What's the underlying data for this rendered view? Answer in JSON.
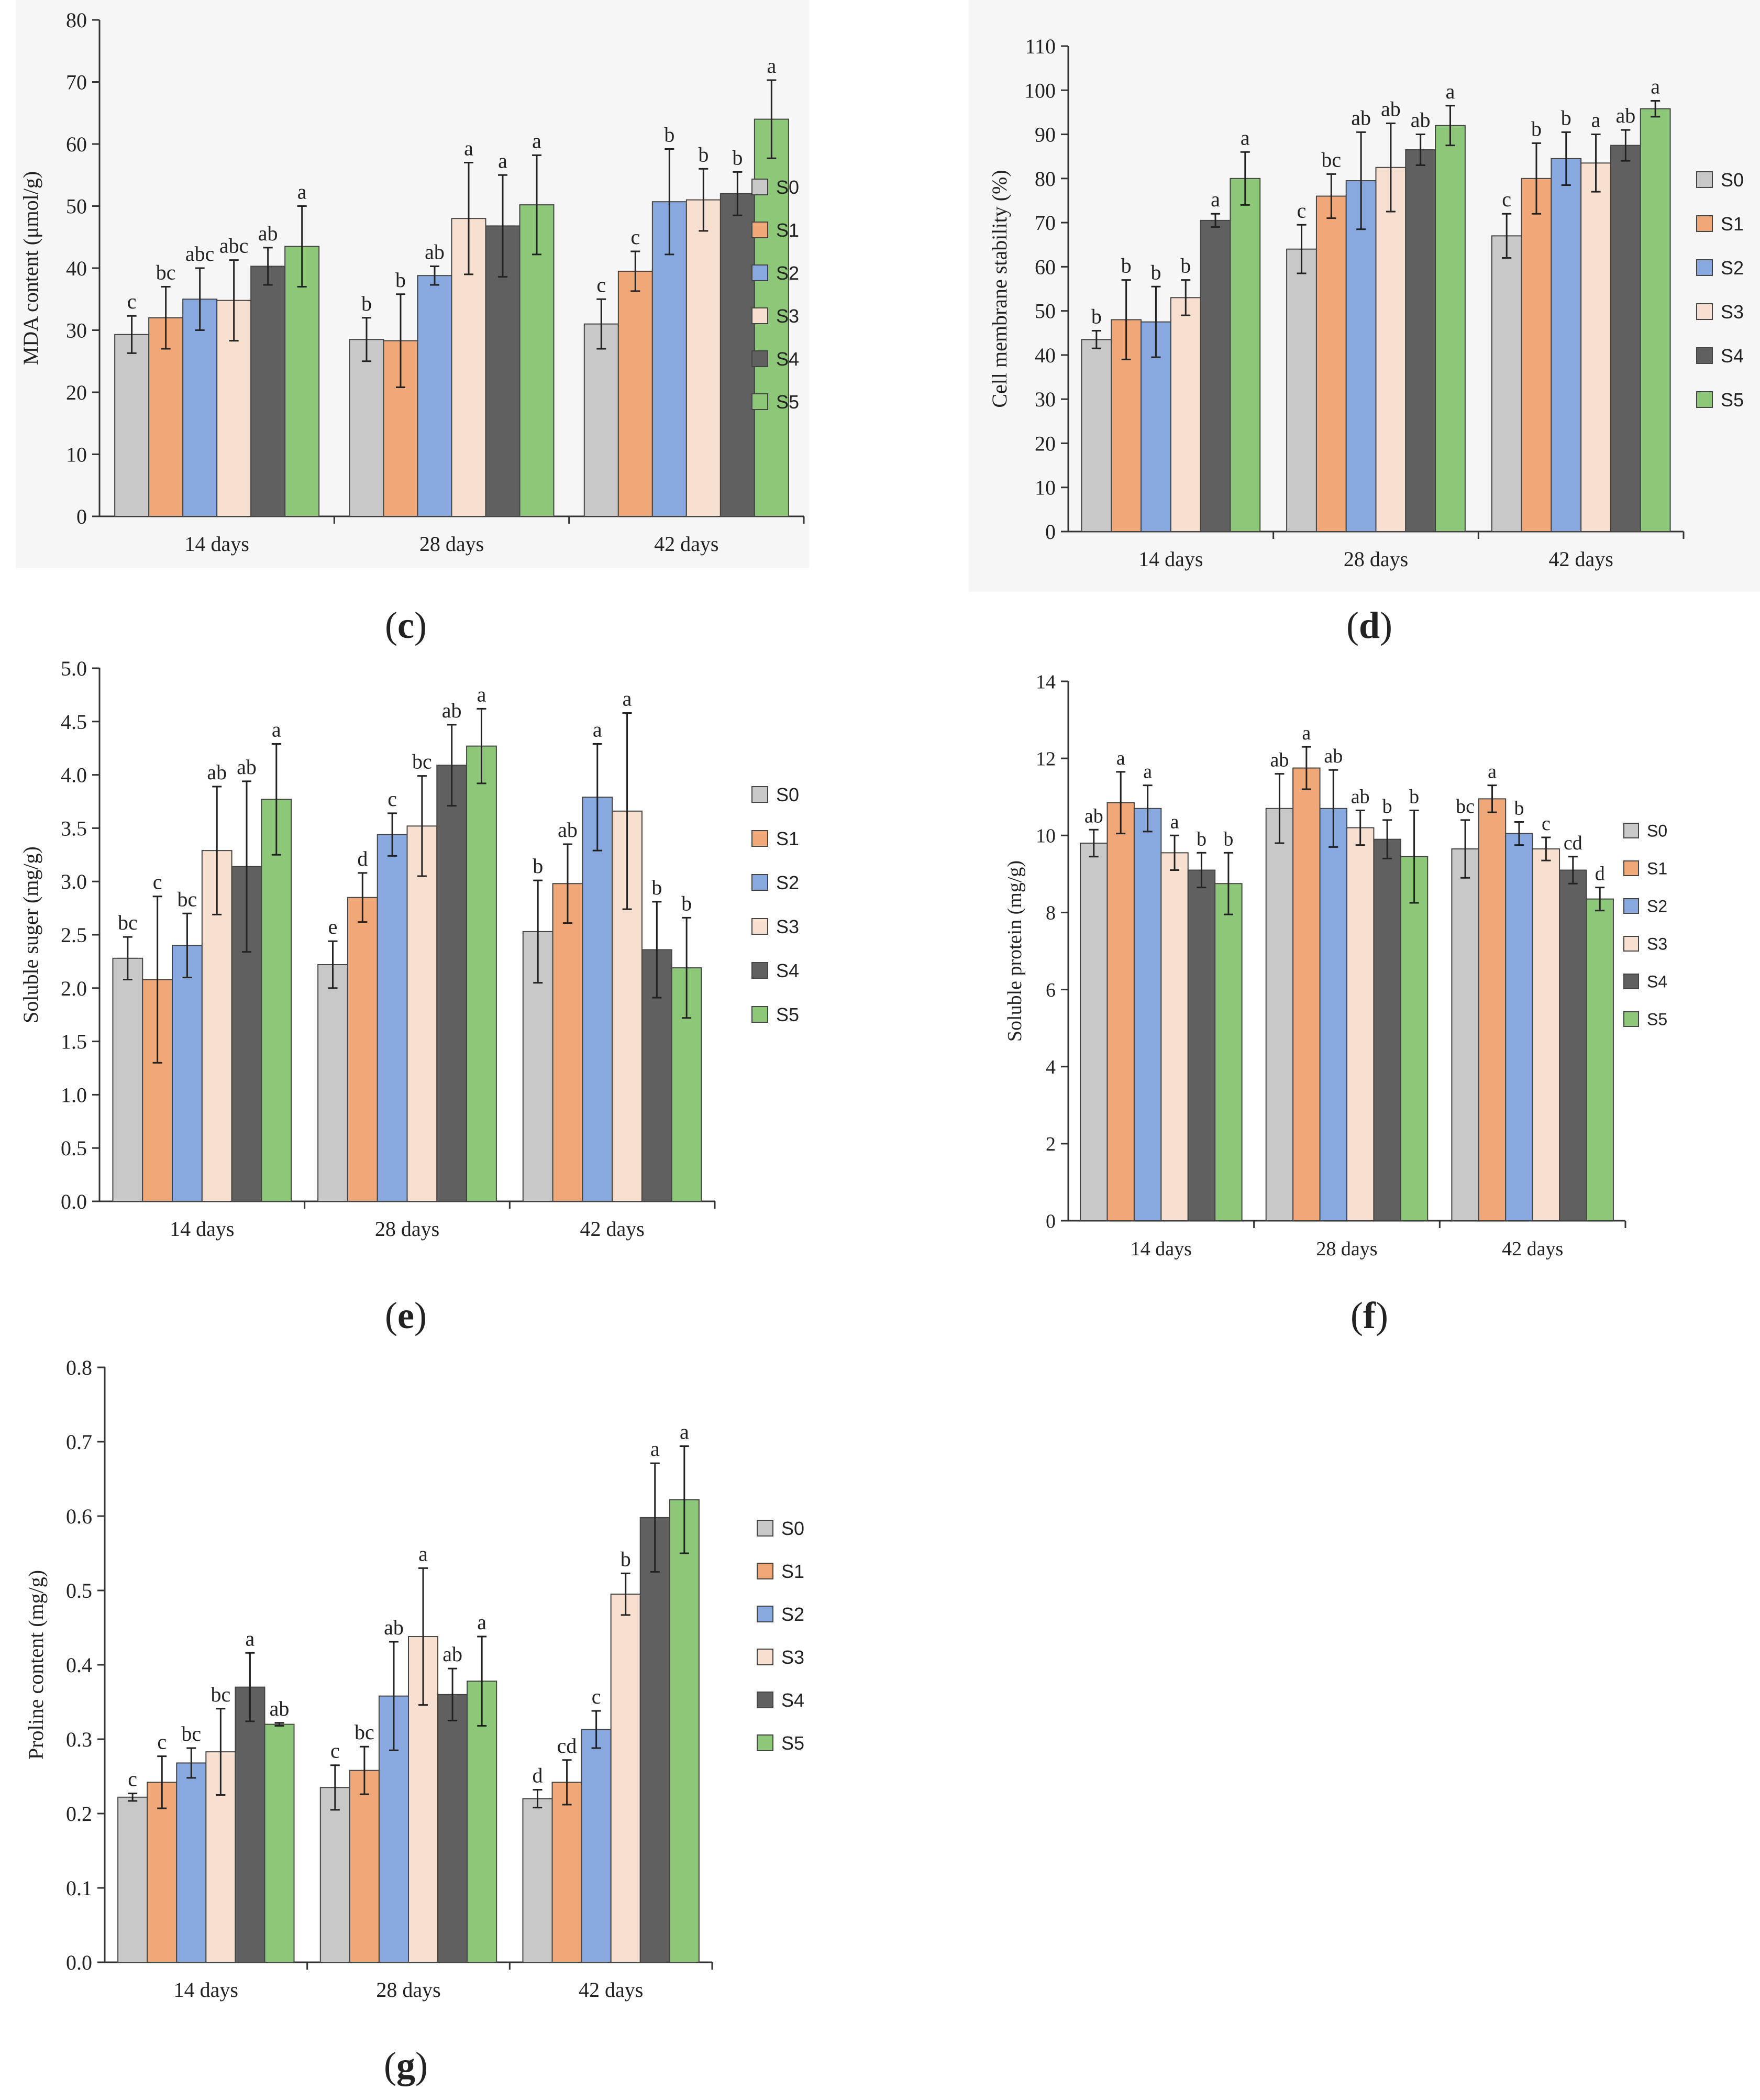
{
  "figure": {
    "groups": [
      "14 days",
      "28 days",
      "42 days"
    ],
    "series": [
      "S0",
      "S1",
      "S2",
      "S3",
      "S4",
      "S5"
    ],
    "series_colors": [
      "#c8c8c8",
      "#f0a878",
      "#88a8e0",
      "#f8e0d0",
      "#606060",
      "#8cc878"
    ]
  },
  "chart_data": [
    {
      "type": "bar",
      "panel": "(c)",
      "title": "",
      "xlabel": "",
      "ylabel": "MDA content (μmol/g)",
      "ylim": [
        0,
        80
      ],
      "yticks": [
        0,
        10,
        20,
        30,
        40,
        50,
        60,
        70,
        80
      ],
      "ytick_labels": [
        "0",
        "10",
        "20",
        "30",
        "40",
        "50",
        "60",
        "70",
        "80"
      ],
      "categories": [
        "14 days",
        "28 days",
        "42 days"
      ],
      "series": [
        {
          "name": "S0",
          "values": [
            29.3,
            28.5,
            31.0
          ],
          "errors": [
            3.0,
            3.5,
            4.0
          ],
          "letters": [
            "c",
            "b",
            "c"
          ]
        },
        {
          "name": "S1",
          "values": [
            32.0,
            28.3,
            39.5
          ],
          "errors": [
            5.0,
            7.5,
            3.2
          ],
          "letters": [
            "bc",
            "b",
            "c"
          ]
        },
        {
          "name": "S2",
          "values": [
            35.0,
            38.8,
            50.7
          ],
          "errors": [
            5.0,
            1.5,
            8.5
          ],
          "letters": [
            "abc",
            "ab",
            "b"
          ]
        },
        {
          "name": "S3",
          "values": [
            34.8,
            48.0,
            51.0
          ],
          "errors": [
            6.5,
            9.0,
            5.0
          ],
          "letters": [
            "abc",
            "a",
            "b"
          ]
        },
        {
          "name": "S4",
          "values": [
            40.3,
            46.8,
            52.0
          ],
          "errors": [
            3.0,
            8.2,
            3.5
          ],
          "letters": [
            "ab",
            "a",
            "b"
          ]
        },
        {
          "name": "S5",
          "values": [
            43.5,
            50.2,
            64.0
          ],
          "errors": [
            6.5,
            8.0,
            6.3
          ],
          "letters": [
            "a",
            "a",
            "a"
          ]
        }
      ],
      "legend": "right"
    },
    {
      "type": "bar",
      "panel": "(d)",
      "title": "",
      "xlabel": "",
      "ylabel": "Cell membrane stability (%)",
      "ylim": [
        0,
        110
      ],
      "yticks": [
        0,
        10,
        20,
        30,
        40,
        50,
        60,
        70,
        80,
        90,
        100,
        110
      ],
      "ytick_labels": [
        "0",
        "10",
        "20",
        "30",
        "40",
        "50",
        "60",
        "70",
        "80",
        "90",
        "100",
        "110"
      ],
      "categories": [
        "14 days",
        "28 days",
        "42 days"
      ],
      "series": [
        {
          "name": "S0",
          "values": [
            43.5,
            64.0,
            67.0
          ],
          "errors": [
            2.0,
            5.5,
            5.0
          ],
          "letters": [
            "b",
            "c",
            "c"
          ]
        },
        {
          "name": "S1",
          "values": [
            48.0,
            76.0,
            80.0
          ],
          "errors": [
            9.0,
            5.0,
            8.0
          ],
          "letters": [
            "b",
            "bc",
            "b"
          ]
        },
        {
          "name": "S2",
          "values": [
            47.5,
            79.5,
            84.5
          ],
          "errors": [
            8.0,
            11.0,
            6.0
          ],
          "letters": [
            "b",
            "ab",
            "b"
          ]
        },
        {
          "name": "S3",
          "values": [
            53.0,
            82.5,
            83.5
          ],
          "errors": [
            4.0,
            10.0,
            6.5
          ],
          "letters": [
            "b",
            "ab",
            "a"
          ]
        },
        {
          "name": "S4",
          "values": [
            70.5,
            86.5,
            87.5
          ],
          "errors": [
            1.5,
            3.5,
            3.5
          ],
          "letters": [
            "a",
            "ab",
            "ab"
          ]
        },
        {
          "name": "S5",
          "values": [
            80.0,
            92.0,
            95.8
          ],
          "errors": [
            6.0,
            4.5,
            1.8
          ],
          "letters": [
            "a",
            "a",
            "a"
          ]
        }
      ],
      "legend": "right"
    },
    {
      "type": "bar",
      "panel": "(e)",
      "title": "",
      "xlabel": "",
      "ylabel": "Soluble suger (mg/g)",
      "ylim": [
        0,
        5
      ],
      "yticks": [
        0,
        0.5,
        1,
        1.5,
        2,
        2.5,
        3,
        3.5,
        4,
        4.5,
        5
      ],
      "ytick_labels": [
        "0.0",
        "0.5",
        "1.0",
        "1.5",
        "2.0",
        "2.5",
        "3.0",
        "3.5",
        "4.0",
        "4.5",
        "5.0"
      ],
      "categories": [
        "14 days",
        "28 days",
        "42 days"
      ],
      "series": [
        {
          "name": "S0",
          "values": [
            2.28,
            2.22,
            2.53
          ],
          "errors": [
            0.2,
            0.22,
            0.48
          ],
          "letters": [
            "bc",
            "e",
            "b"
          ]
        },
        {
          "name": "S1",
          "values": [
            2.08,
            2.85,
            2.98
          ],
          "errors": [
            0.78,
            0.23,
            0.37
          ],
          "letters": [
            "c",
            "d",
            "ab"
          ]
        },
        {
          "name": "S2",
          "values": [
            2.4,
            3.44,
            3.79
          ],
          "errors": [
            0.3,
            0.2,
            0.5
          ],
          "letters": [
            "bc",
            "c",
            "a"
          ]
        },
        {
          "name": "S3",
          "values": [
            3.29,
            3.52,
            3.66
          ],
          "errors": [
            0.6,
            0.47,
            0.92
          ],
          "letters": [
            "ab",
            "bc",
            "a"
          ]
        },
        {
          "name": "S4",
          "values": [
            3.14,
            4.09,
            2.36
          ],
          "errors": [
            0.8,
            0.38,
            0.45
          ],
          "letters": [
            "ab",
            "ab",
            "b"
          ]
        },
        {
          "name": "S5",
          "values": [
            3.77,
            4.27,
            2.19
          ],
          "errors": [
            0.52,
            0.35,
            0.47
          ],
          "letters": [
            "a",
            "a",
            "b"
          ]
        }
      ],
      "legend": "right"
    },
    {
      "type": "bar",
      "panel": "(f)",
      "title": "",
      "xlabel": "",
      "ylabel": "Soluble protein (mg/g)",
      "ylim": [
        0,
        14
      ],
      "yticks": [
        0,
        2,
        4,
        6,
        8,
        10,
        12,
        14
      ],
      "ytick_labels": [
        "0",
        "2",
        "4",
        "6",
        "8",
        "10",
        "12",
        "14"
      ],
      "categories": [
        "14 days",
        "28 days",
        "42 days"
      ],
      "series": [
        {
          "name": "S0",
          "values": [
            9.8,
            10.7,
            9.65
          ],
          "errors": [
            0.35,
            0.9,
            0.75
          ],
          "letters": [
            "ab",
            "ab",
            "bc"
          ]
        },
        {
          "name": "S1",
          "values": [
            10.85,
            11.75,
            10.95
          ],
          "errors": [
            0.8,
            0.55,
            0.35
          ],
          "letters": [
            "a",
            "a",
            "a"
          ]
        },
        {
          "name": "S2",
          "values": [
            10.7,
            10.7,
            10.05
          ],
          "errors": [
            0.6,
            1.0,
            0.3
          ],
          "letters": [
            "a",
            "ab",
            "b"
          ]
        },
        {
          "name": "S3",
          "values": [
            9.55,
            10.2,
            9.65
          ],
          "errors": [
            0.45,
            0.45,
            0.3
          ],
          "letters": [
            "a",
            "ab",
            "c"
          ]
        },
        {
          "name": "S4",
          "values": [
            9.1,
            9.9,
            9.1
          ],
          "errors": [
            0.45,
            0.5,
            0.35
          ],
          "letters": [
            "b",
            "b",
            "cd"
          ]
        },
        {
          "name": "S5",
          "values": [
            8.75,
            9.45,
            8.35
          ],
          "errors": [
            0.8,
            1.2,
            0.3
          ],
          "letters": [
            "b",
            "b",
            "d"
          ]
        }
      ],
      "legend": "right"
    },
    {
      "type": "bar",
      "panel": "(g)",
      "title": "",
      "xlabel": "",
      "ylabel": "Proline content (mg/g)",
      "ylim": [
        0,
        0.8
      ],
      "yticks": [
        0,
        0.1,
        0.2,
        0.3,
        0.4,
        0.5,
        0.6,
        0.7,
        0.8
      ],
      "ytick_labels": [
        "0.0",
        "0.1",
        "0.2",
        "0.3",
        "0.4",
        "0.5",
        "0.6",
        "0.7",
        "0.8"
      ],
      "categories": [
        "14 days",
        "28 days",
        "42 days"
      ],
      "series": [
        {
          "name": "S0",
          "values": [
            0.222,
            0.235,
            0.22
          ],
          "errors": [
            0.005,
            0.03,
            0.012
          ],
          "letters": [
            "c",
            "c",
            "d"
          ]
        },
        {
          "name": "S1",
          "values": [
            0.242,
            0.258,
            0.242
          ],
          "errors": [
            0.035,
            0.032,
            0.03
          ],
          "letters": [
            "c",
            "bc",
            "cd"
          ]
        },
        {
          "name": "S2",
          "values": [
            0.268,
            0.358,
            0.313
          ],
          "errors": [
            0.02,
            0.073,
            0.025
          ],
          "letters": [
            "bc",
            "ab",
            "c"
          ]
        },
        {
          "name": "S3",
          "values": [
            0.283,
            0.438,
            0.495
          ],
          "errors": [
            0.058,
            0.092,
            0.028
          ],
          "letters": [
            "bc",
            "a",
            "b"
          ]
        },
        {
          "name": "S4",
          "values": [
            0.37,
            0.36,
            0.598
          ],
          "errors": [
            0.046,
            0.035,
            0.073
          ],
          "letters": [
            "a",
            "ab",
            "a"
          ]
        },
        {
          "name": "S5",
          "values": [
            0.32,
            0.378,
            0.622
          ],
          "errors": [
            0.002,
            0.06,
            0.072
          ],
          "letters": [
            "ab",
            "a",
            "a"
          ]
        }
      ],
      "legend": "right"
    }
  ]
}
